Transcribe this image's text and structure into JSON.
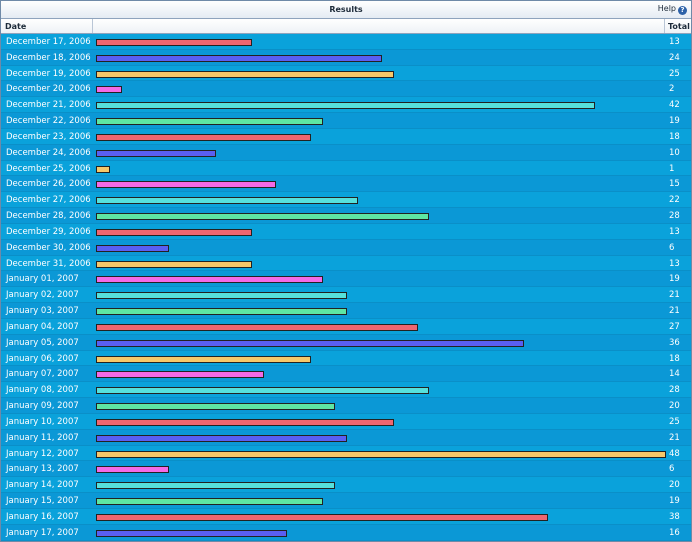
{
  "window": {
    "title": "Results",
    "help_label": "Help",
    "help_icon_glyph": "?"
  },
  "table": {
    "columns": {
      "date": "Date",
      "total": "Total"
    },
    "max_value": 48,
    "colors": [
      "#ee6670",
      "#5a5ff2",
      "#f6c86a",
      "#f46ae6",
      "#56e1dc",
      "#5ee6a3"
    ],
    "rows": [
      {
        "date": "December 17, 2006",
        "total": 13
      },
      {
        "date": "December 18, 2006",
        "total": 24
      },
      {
        "date": "December 19, 2006",
        "total": 25
      },
      {
        "date": "December 20, 2006",
        "total": 2
      },
      {
        "date": "December 21, 2006",
        "total": 42
      },
      {
        "date": "December 22, 2006",
        "total": 19
      },
      {
        "date": "December 23, 2006",
        "total": 18
      },
      {
        "date": "December 24, 2006",
        "total": 10
      },
      {
        "date": "December 25, 2006",
        "total": 1
      },
      {
        "date": "December 26, 2006",
        "total": 15
      },
      {
        "date": "December 27, 2006",
        "total": 22
      },
      {
        "date": "December 28, 2006",
        "total": 28
      },
      {
        "date": "December 29, 2006",
        "total": 13
      },
      {
        "date": "December 30, 2006",
        "total": 6
      },
      {
        "date": "December 31, 2006",
        "total": 13
      },
      {
        "date": "January 01, 2007",
        "total": 19
      },
      {
        "date": "January 02, 2007",
        "total": 21
      },
      {
        "date": "January 03, 2007",
        "total": 21
      },
      {
        "date": "January 04, 2007",
        "total": 27
      },
      {
        "date": "January 05, 2007",
        "total": 36
      },
      {
        "date": "January 06, 2007",
        "total": 18
      },
      {
        "date": "January 07, 2007",
        "total": 14
      },
      {
        "date": "January 08, 2007",
        "total": 28
      },
      {
        "date": "January 09, 2007",
        "total": 20
      },
      {
        "date": "January 10, 2007",
        "total": 25
      },
      {
        "date": "January 11, 2007",
        "total": 21
      },
      {
        "date": "January 12, 2007",
        "total": 48
      },
      {
        "date": "January 13, 2007",
        "total": 6
      },
      {
        "date": "January 14, 2007",
        "total": 20
      },
      {
        "date": "January 15, 2007",
        "total": 19
      },
      {
        "date": "January 16, 2007",
        "total": 38
      },
      {
        "date": "January 17, 2007",
        "total": 16
      }
    ]
  }
}
